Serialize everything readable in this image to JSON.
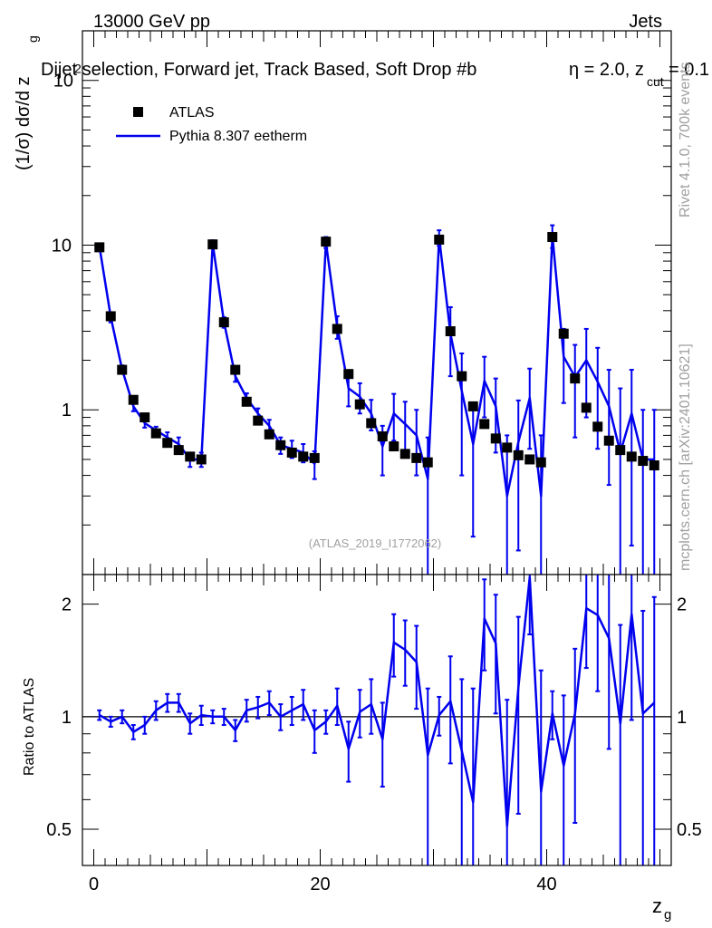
{
  "header": {
    "energy_label": "13000 GeV pp",
    "category_label": "Jets"
  },
  "side_labels": {
    "rivet": "Rivet 4.1.0,  700k events",
    "source": "mcplots.cern.ch [arXiv:2401.10621]"
  },
  "chart_data": [
    {
      "type": "scatter",
      "title": "Dijet selection, Forward jet, Track Based, Soft Drop #b = 2.0, z_cut = 0.1",
      "title_main": "Dijet selection, Forward jet, Track Based, Soft Drop #b",
      "title_tail": "η = 2.0, z",
      "title_sub": "cut",
      "title_end": " = 0.1",
      "overlap_exponent": "2",
      "ylabel": "(1/σ) dσ/d z",
      "ylabel_sub": "g",
      "xlabel": "z",
      "xlabel_sub": "g",
      "yscale": "log",
      "xlim": [
        -1,
        51
      ],
      "ylim": [
        0.1,
        200
      ],
      "xticks": [
        0,
        20,
        40
      ],
      "yticks": [
        1,
        10
      ],
      "ytick_labels": [
        "1",
        "10"
      ],
      "top_tick_label": "10",
      "watermark": "(ATLAS_2019_I1772062)",
      "legend": {
        "position": "top-left",
        "entries": [
          "ATLAS",
          "Pythia 8.307 eetherm"
        ]
      },
      "x": [
        0.5,
        1.5,
        2.5,
        3.5,
        4.5,
        5.5,
        6.5,
        7.5,
        8.5,
        9.5,
        10.5,
        11.5,
        12.5,
        13.5,
        14.5,
        15.5,
        16.5,
        17.5,
        18.5,
        19.5,
        20.5,
        21.5,
        22.5,
        23.5,
        24.5,
        25.5,
        26.5,
        27.5,
        28.5,
        29.5,
        30.5,
        31.5,
        32.5,
        33.5,
        34.5,
        35.5,
        36.5,
        37.5,
        38.5,
        39.5,
        40.5,
        41.5,
        42.5,
        43.5,
        44.5,
        45.5,
        46.5,
        47.5,
        48.5,
        49.5
      ],
      "series": [
        {
          "name": "ATLAS",
          "style": "markers",
          "values": [
            9.7,
            3.7,
            1.75,
            1.15,
            0.9,
            0.72,
            0.63,
            0.57,
            0.52,
            0.5,
            10.1,
            3.4,
            1.75,
            1.12,
            0.86,
            0.71,
            0.61,
            0.55,
            0.52,
            0.51,
            10.5,
            3.1,
            1.65,
            1.08,
            0.83,
            0.69,
            0.6,
            0.54,
            0.51,
            0.48,
            10.8,
            3.0,
            1.6,
            1.05,
            0.82,
            0.67,
            0.59,
            0.53,
            0.5,
            0.48,
            11.2,
            2.9,
            1.55,
            1.03,
            0.79,
            0.65,
            0.57,
            0.52,
            0.49,
            0.46
          ]
        },
        {
          "name": "Pythia 8.307 eetherm",
          "style": "line",
          "values": [
            9.8,
            3.65,
            1.76,
            1.05,
            0.83,
            0.75,
            0.68,
            0.62,
            0.5,
            0.5,
            10.2,
            3.4,
            1.6,
            1.18,
            0.95,
            0.8,
            0.61,
            0.58,
            0.55,
            0.47,
            10.4,
            3.2,
            1.35,
            1.2,
            0.95,
            0.6,
            0.95,
            0.82,
            0.7,
            0.38,
            11.1,
            2.9,
            1.3,
            0.62,
            1.5,
            1.05,
            0.3,
            0.64,
            1.18,
            0.3,
            11.4,
            2.1,
            1.58,
            2.0,
            1.48,
            1.05,
            0.55,
            0.95,
            0.5,
            0.5
          ],
          "yerr": [
            0.4,
            0.25,
            0.1,
            0.07,
            0.05,
            0.04,
            0.05,
            0.06,
            0.05,
            0.05,
            0.5,
            0.25,
            0.12,
            0.08,
            0.07,
            0.07,
            0.07,
            0.07,
            0.07,
            0.09,
            0.8,
            0.5,
            0.3,
            0.25,
            0.2,
            0.2,
            0.3,
            0.3,
            0.3,
            0.3,
            1.2,
            1.3,
            0.9,
            0.45,
            0.6,
            0.5,
            0.4,
            0.5,
            0.6,
            0.4,
            1.8,
            1.0,
            0.9,
            1.1,
            0.9,
            0.7,
            0.8,
            0.8,
            0.5,
            0.5
          ]
        }
      ]
    },
    {
      "type": "line",
      "ylabel": "Ratio to ATLAS",
      "xlabel": "z",
      "xlabel_sub": "g",
      "xlim": [
        -1,
        51
      ],
      "ylim": [
        0.4,
        2.4
      ],
      "xticks": [
        0,
        20,
        40
      ],
      "xtick_labels": [
        "0",
        "20",
        "40"
      ],
      "yticks": [
        0.5,
        1,
        2
      ],
      "ytick_labels": [
        "0.5",
        "1",
        "2"
      ],
      "reference_line": 1,
      "x": [
        0.5,
        1.5,
        2.5,
        3.5,
        4.5,
        5.5,
        6.5,
        7.5,
        8.5,
        9.5,
        10.5,
        11.5,
        12.5,
        13.5,
        14.5,
        15.5,
        16.5,
        17.5,
        18.5,
        19.5,
        20.5,
        21.5,
        22.5,
        23.5,
        24.5,
        25.5,
        26.5,
        27.5,
        28.5,
        29.5,
        30.5,
        31.5,
        32.5,
        33.5,
        34.5,
        35.5,
        36.5,
        37.5,
        38.5,
        39.5,
        40.5,
        41.5,
        42.5,
        43.5,
        44.5,
        45.5,
        46.5,
        47.5,
        48.5,
        49.5
      ],
      "series": [
        {
          "name": "Pythia 8.307 eetherm",
          "values": [
            1.01,
            0.97,
            1.0,
            0.91,
            0.95,
            1.04,
            1.09,
            1.09,
            0.96,
            1.01,
            1.0,
            1.0,
            0.92,
            1.04,
            1.06,
            1.09,
            1.0,
            1.04,
            1.08,
            0.92,
            0.97,
            1.07,
            0.82,
            1.03,
            1.08,
            0.87,
            1.58,
            1.51,
            1.4,
            0.79,
            1.01,
            1.1,
            0.81,
            0.59,
            1.83,
            1.57,
            0.51,
            1.2,
            2.36,
            0.63,
            1.02,
            0.74,
            1.02,
            1.95,
            1.87,
            1.62,
            0.96,
            1.88,
            1.02,
            1.09
          ],
          "yerr": [
            0.03,
            0.03,
            0.04,
            0.04,
            0.05,
            0.06,
            0.06,
            0.06,
            0.06,
            0.06,
            0.04,
            0.05,
            0.06,
            0.07,
            0.07,
            0.08,
            0.08,
            0.09,
            0.1,
            0.12,
            0.07,
            0.12,
            0.15,
            0.15,
            0.18,
            0.22,
            0.3,
            0.3,
            0.35,
            0.4,
            0.12,
            0.35,
            0.45,
            0.6,
            0.5,
            0.55,
            0.6,
            0.65,
            0.7,
            0.7,
            0.15,
            0.4,
            0.5,
            0.6,
            0.7,
            0.8,
            0.8,
            0.9,
            0.9,
            1.0
          ]
        }
      ]
    }
  ]
}
